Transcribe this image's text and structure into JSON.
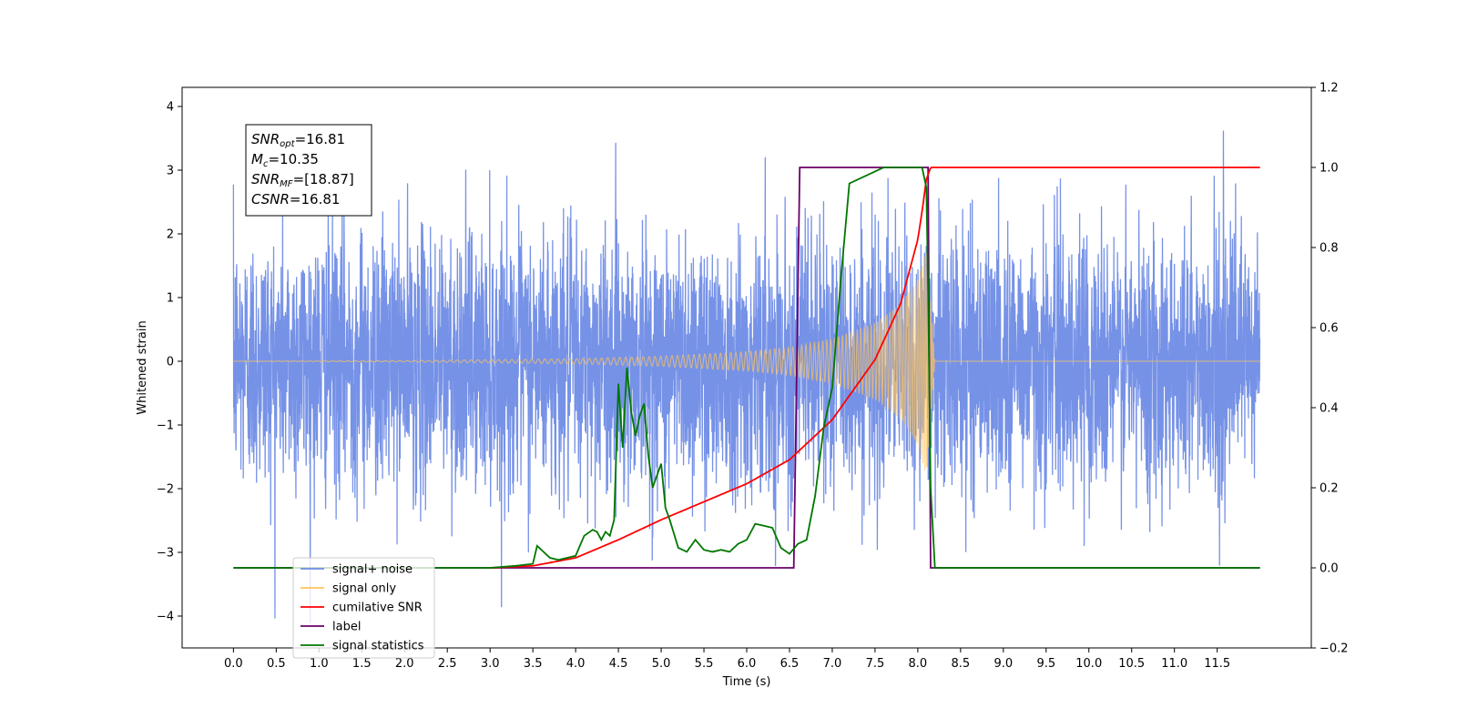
{
  "chart_data": {
    "type": "line",
    "xlabel": "Time (s)",
    "ylabel": "Whitened strain",
    "xlim": [
      -0.6,
      12.6
    ],
    "ylim": [
      -4.5,
      4.3
    ],
    "y2lim": [
      -0.2,
      1.2
    ],
    "x_ticks": [
      0.0,
      0.5,
      1.0,
      1.5,
      2.0,
      2.5,
      3.0,
      3.5,
      4.0,
      4.5,
      5.0,
      5.5,
      6.0,
      6.5,
      7.0,
      7.5,
      8.0,
      8.5,
      9.0,
      9.5,
      10.0,
      10.5,
      11.0,
      11.5
    ],
    "x_tick_labels": [
      "0.0",
      "0.5",
      "1.0",
      "1.5",
      "2.0",
      "2.5",
      "3.0",
      "3.5",
      "4.0",
      "4.5",
      "5.0",
      "5.5",
      "6.0",
      "6.5",
      "7.0",
      "7.5",
      "8.0",
      "8.5",
      "9.0",
      "9.5",
      "10.0",
      "10.5",
      "11.0",
      "11.5"
    ],
    "y_ticks": [
      -4,
      -3,
      -2,
      -1,
      0,
      1,
      2,
      3,
      4
    ],
    "y_tick_labels": [
      "−4",
      "−3",
      "−2",
      "−1",
      "0",
      "1",
      "2",
      "3",
      "4"
    ],
    "y2_ticks": [
      -0.2,
      0.0,
      0.2,
      0.4,
      0.6,
      0.8,
      1.0,
      1.2
    ],
    "y2_tick_labels": [
      "−0.2",
      "0.0",
      "0.2",
      "0.4",
      "0.6",
      "0.8",
      "1.0",
      "1.2"
    ],
    "info_box": {
      "lines": [
        {
          "base": "SNR",
          "sub": "opt",
          "value": "=16.81"
        },
        {
          "base": "M",
          "sub": "c",
          "value": "=10.35"
        },
        {
          "base": "SNR",
          "sub": "MF",
          "value": "=[18.87]"
        },
        {
          "base": "CSNR",
          "sub": "",
          "value": "=16.81"
        }
      ]
    },
    "legend": {
      "location": "lower-left",
      "entries": [
        {
          "label": "signal+ noise",
          "color": "#6f8ce6"
        },
        {
          "label": "signal only",
          "color": "#ffc55c"
        },
        {
          "label": "cumilative SNR",
          "color": "#ff0000"
        },
        {
          "label": "label",
          "color": "#6a006a"
        },
        {
          "label": "signal statistics",
          "color": "#007700"
        }
      ]
    },
    "series": [
      {
        "name": "signal+ noise",
        "axis": "left",
        "color": "#6f8ce6",
        "x_range": [
          0.0,
          12.0
        ],
        "typical_std": 1.0,
        "max_value": 3.9,
        "min_value": -4.1
      },
      {
        "name": "signal only",
        "axis": "left",
        "color": "#ffc55c",
        "envelope": {
          "x": [
            0.0,
            2.0,
            4.0,
            5.0,
            6.0,
            6.5,
            7.0,
            7.5,
            7.8,
            8.0,
            8.1,
            8.15,
            8.2
          ],
          "amplitude": [
            0.0,
            0.01,
            0.04,
            0.08,
            0.15,
            0.22,
            0.35,
            0.6,
            0.9,
            1.3,
            1.8,
            1.0,
            0.0
          ]
        }
      },
      {
        "name": "cumilative SNR",
        "axis": "right",
        "color": "#ff0000",
        "x": [
          3.0,
          3.5,
          4.0,
          4.5,
          5.0,
          5.5,
          6.0,
          6.5,
          7.0,
          7.5,
          7.8,
          8.0,
          8.05,
          8.1,
          8.15,
          8.2,
          12.0
        ],
        "y": [
          0.0,
          0.005,
          0.025,
          0.07,
          0.12,
          0.165,
          0.21,
          0.27,
          0.37,
          0.52,
          0.66,
          0.82,
          0.89,
          0.97,
          1.0,
          1.0,
          1.0
        ]
      },
      {
        "name": "label",
        "axis": "right",
        "color": "#6a006a",
        "x": [
          0.0,
          6.55,
          6.62,
          8.12,
          8.15,
          12.0
        ],
        "y": [
          0.0,
          0.0,
          1.0,
          1.0,
          0.0,
          0.0
        ]
      },
      {
        "name": "signal statistics",
        "axis": "right",
        "color": "#007700",
        "x": [
          0.0,
          3.0,
          3.3,
          3.5,
          3.55,
          3.7,
          3.8,
          4.0,
          4.1,
          4.2,
          4.25,
          4.3,
          4.35,
          4.4,
          4.45,
          4.5,
          4.55,
          4.6,
          4.65,
          4.7,
          4.75,
          4.8,
          4.85,
          4.9,
          5.0,
          5.05,
          5.1,
          5.2,
          5.3,
          5.4,
          5.5,
          5.6,
          5.7,
          5.8,
          5.9,
          6.0,
          6.1,
          6.2,
          6.3,
          6.4,
          6.5,
          6.6,
          6.7,
          6.8,
          6.9,
          7.0,
          7.1,
          7.2,
          7.3,
          7.4,
          7.5,
          7.6,
          7.8,
          8.0,
          8.05,
          8.1,
          8.12,
          8.15,
          8.2,
          12.0
        ],
        "y": [
          0.0,
          0.0,
          0.005,
          0.01,
          0.055,
          0.025,
          0.02,
          0.03,
          0.08,
          0.095,
          0.09,
          0.07,
          0.09,
          0.08,
          0.12,
          0.46,
          0.3,
          0.5,
          0.39,
          0.33,
          0.38,
          0.41,
          0.28,
          0.2,
          0.26,
          0.15,
          0.12,
          0.05,
          0.04,
          0.07,
          0.045,
          0.04,
          0.045,
          0.04,
          0.06,
          0.07,
          0.11,
          0.105,
          0.1,
          0.05,
          0.035,
          0.06,
          0.07,
          0.18,
          0.35,
          0.45,
          0.72,
          0.96,
          0.97,
          0.98,
          0.99,
          1.0,
          1.0,
          1.0,
          1.0,
          0.95,
          0.7,
          0.2,
          0.0,
          0.0
        ]
      }
    ]
  }
}
